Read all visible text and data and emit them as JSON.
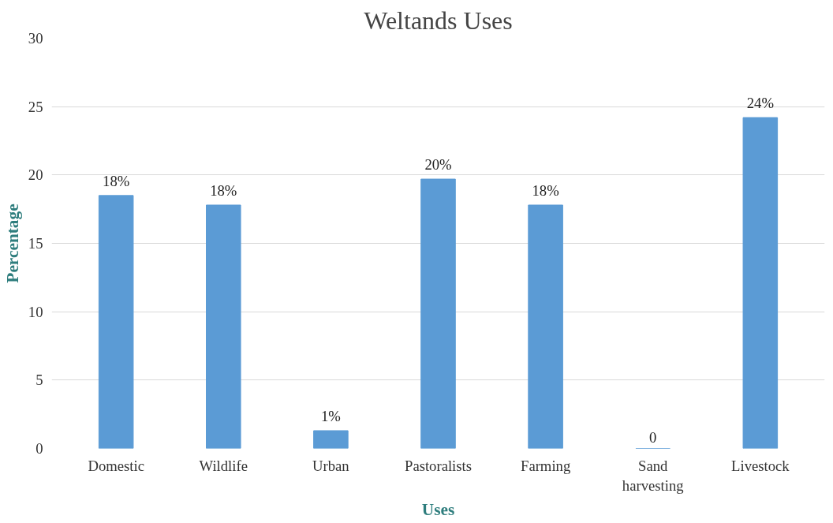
{
  "chart_data": {
    "type": "bar",
    "title": "Weltands Uses",
    "xlabel": "Uses",
    "ylabel": "Percentage",
    "categories": [
      "Domestic",
      "Wildlife",
      "Urban",
      "Pastoralists",
      "Farming",
      "Sand harvesting",
      "Livestock"
    ],
    "values": [
      18.5,
      17.8,
      1.3,
      19.7,
      17.8,
      0,
      24.2
    ],
    "value_labels": [
      "18%",
      "18%",
      "1%",
      "20%",
      "18%",
      "0",
      "24%"
    ],
    "color": "#5b9bd5",
    "ylim": [
      0,
      30
    ],
    "yticks": [
      0,
      5,
      10,
      15,
      20,
      25,
      30
    ],
    "grid": "y"
  }
}
